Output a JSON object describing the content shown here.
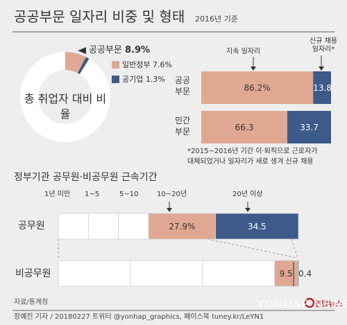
{
  "title": "공공부문 일자리 비중 및 형태",
  "basis": "2016년 기준",
  "colors": {
    "salmon": "#e0a892",
    "navy": "#3d5a8a",
    "white": "#ffffff",
    "background": "#eeeeee",
    "dark": "#333333"
  },
  "chart_data": [
    {
      "type": "pie",
      "title": "총 취업자 대비 비율",
      "total_label": "공공부문",
      "total_value": "8.9%",
      "slices": [
        {
          "name": "일반정부",
          "value": 7.6,
          "label": "7.6%"
        },
        {
          "name": "공기업",
          "value": 1.3,
          "label": "1.3%"
        },
        {
          "name": "",
          "value": 91.1
        }
      ]
    },
    {
      "type": "bar",
      "orientation": "horizontal",
      "stacked": true,
      "unit": "%",
      "categories": [
        "공공\n부문",
        "민간\n부문"
      ],
      "series": [
        {
          "name": "지속 일자리",
          "values": [
            86.2,
            66.3
          ],
          "labels": [
            "86.2%",
            "66.3"
          ]
        },
        {
          "name": "신규 채용\n일자리*",
          "values": [
            13.8,
            33.7
          ],
          "labels": [
            "13.8",
            "33.7"
          ]
        }
      ],
      "footnote": "*2015~2016년 기간 이·퇴직으로 근로자가\n대체되었거나 일자리가 새로 생겨 신규 채용"
    },
    {
      "type": "bar",
      "orientation": "horizontal",
      "stacked": true,
      "title": "정부기관 공무원·비공무원 근속기간",
      "unit": "%",
      "categories": [
        "공무원",
        "비공무원"
      ],
      "segment_labels": [
        "1년 미만",
        "1~5",
        "5~10",
        "10~20년",
        "20년 이상"
      ],
      "series": [
        {
          "name": "1년 미만",
          "values": [
            null,
            null
          ]
        },
        {
          "name": "1~5",
          "values": [
            null,
            null
          ]
        },
        {
          "name": "5~10",
          "values": [
            null,
            null
          ]
        },
        {
          "name": "10~20년",
          "values": [
            27.9,
            9.5
          ],
          "labels": [
            "27.9%",
            "9.5"
          ]
        },
        {
          "name": "20년 이상",
          "values": [
            34.5,
            0.4
          ],
          "labels": [
            "34.5",
            "0.4"
          ]
        }
      ]
    }
  ],
  "source": "자료/통계청",
  "credit": "장예진 기자 / 20180227 트위터 @yonhap_graphics, 페이스북 tuney.kr/LeYN1",
  "watermark": "YONHAP NEWS",
  "logo": "연합뉴스"
}
